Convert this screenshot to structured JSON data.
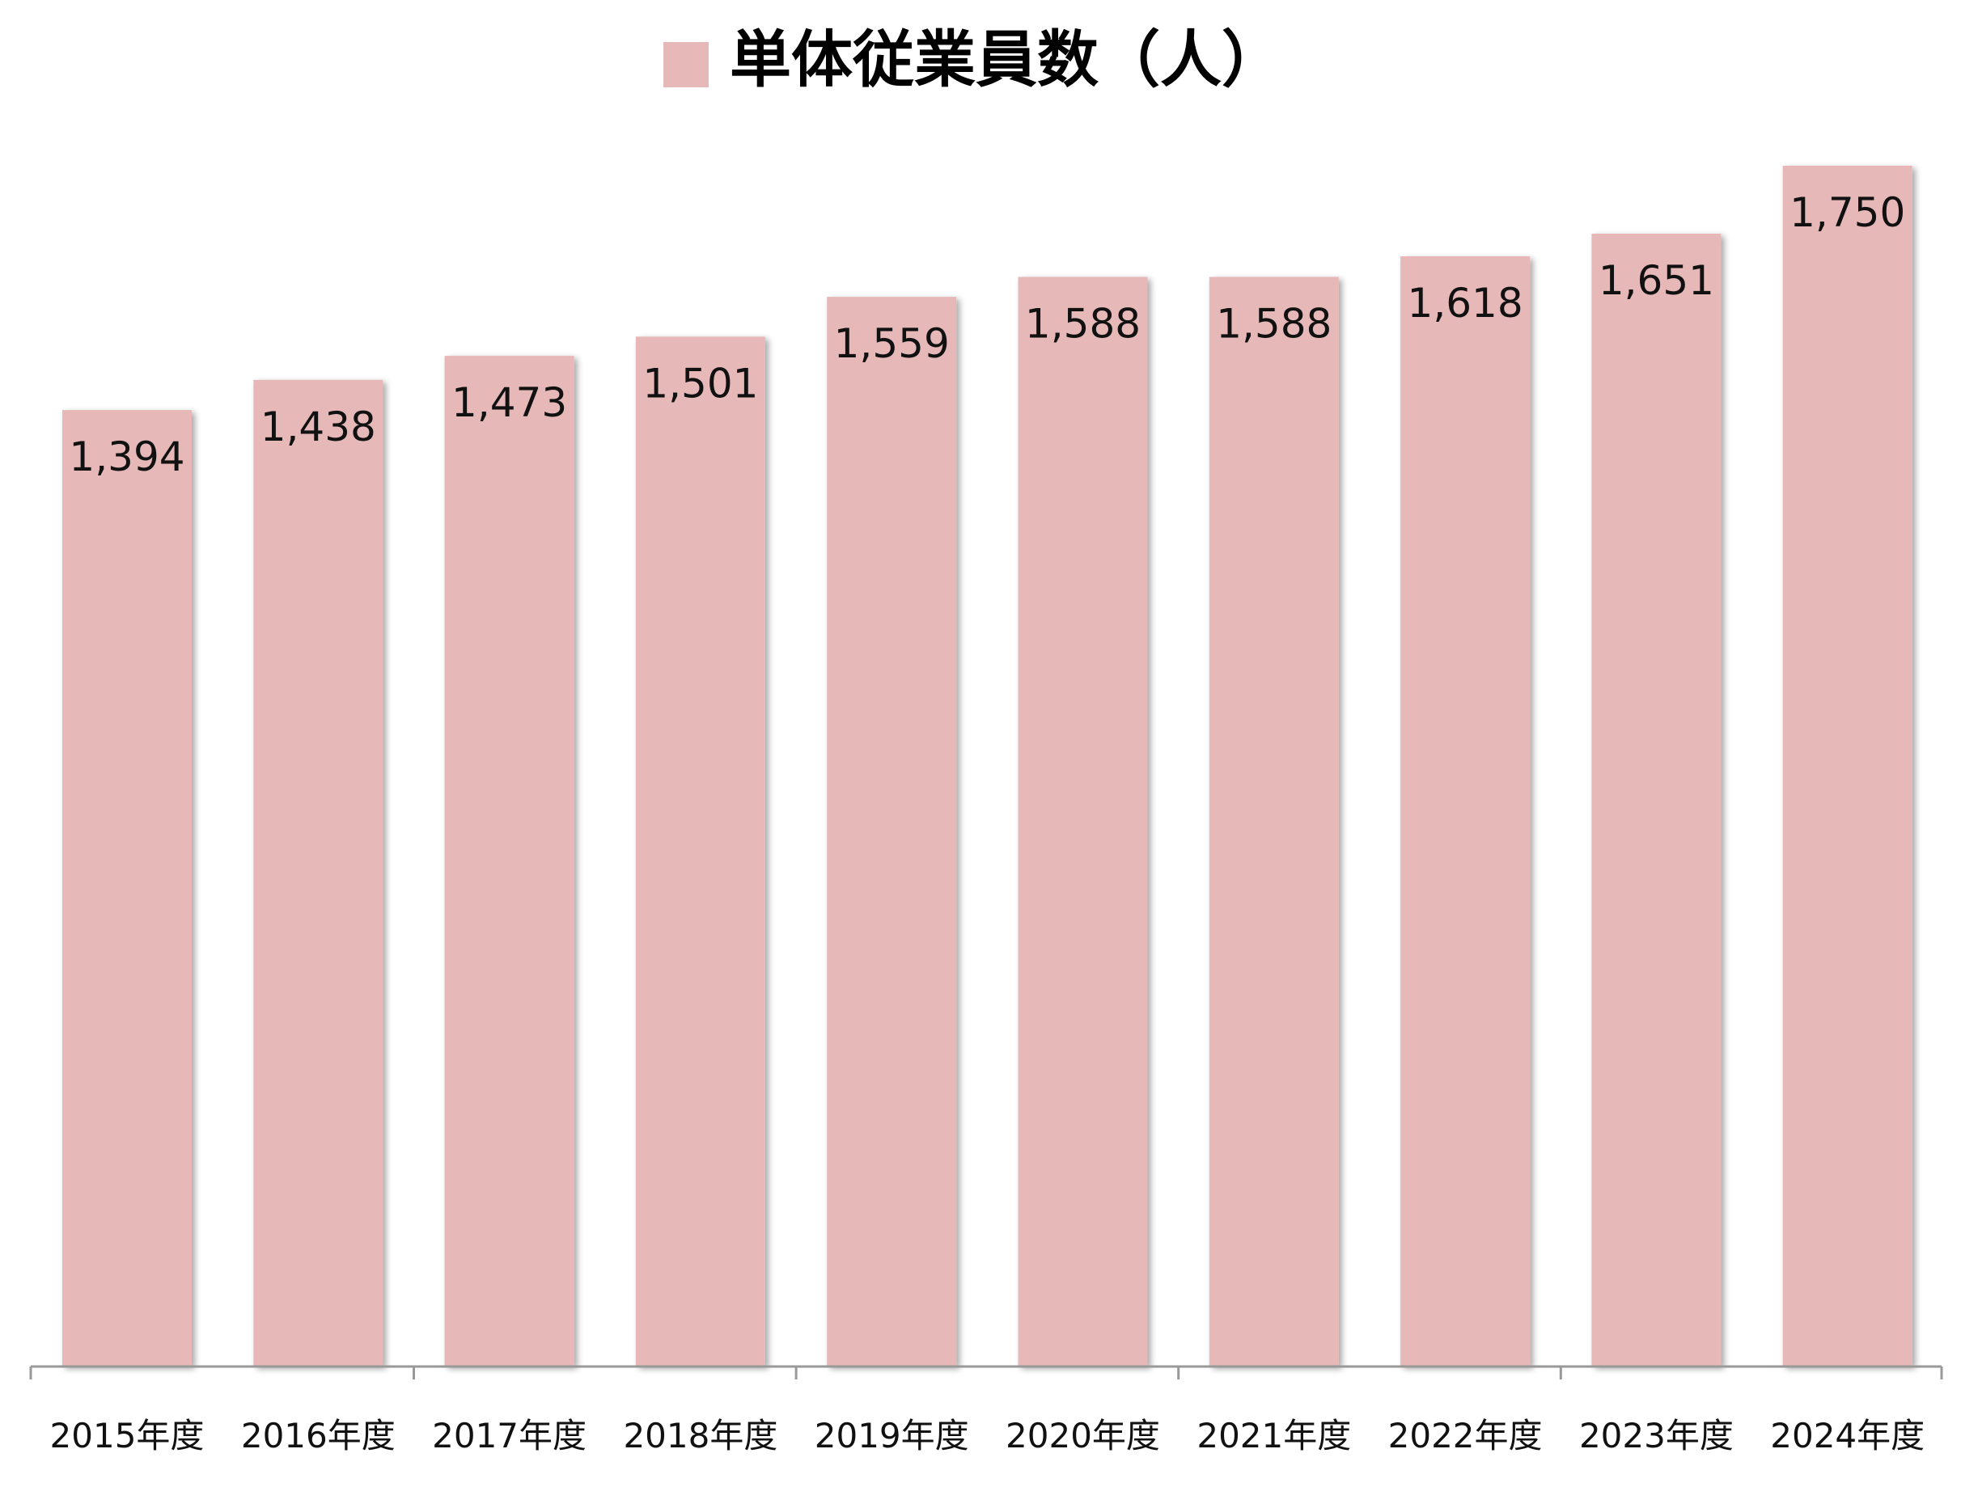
{
  "chart_data": {
    "type": "bar",
    "categories": [
      "2015年度",
      "2016年度",
      "2017年度",
      "2018年度",
      "2019年度",
      "2020年度",
      "2021年度",
      "2022年度",
      "2023年度",
      "2024年度"
    ],
    "series": [
      {
        "name": "単体従業員数（人）",
        "values": [
          1394,
          1438,
          1473,
          1501,
          1559,
          1588,
          1588,
          1618,
          1651,
          1750
        ],
        "data_labels": [
          "1,394",
          "1,438",
          "1,473",
          "1,501",
          "1,559",
          "1,588",
          "1,588",
          "1,618",
          "1,651",
          "1,750"
        ]
      }
    ],
    "ylim": [
      0,
      1840
    ],
    "grid": false,
    "legend": "top-center",
    "colors": {
      "bar": "#e6b8b8",
      "axis": "#999999",
      "text": "#111111"
    }
  }
}
